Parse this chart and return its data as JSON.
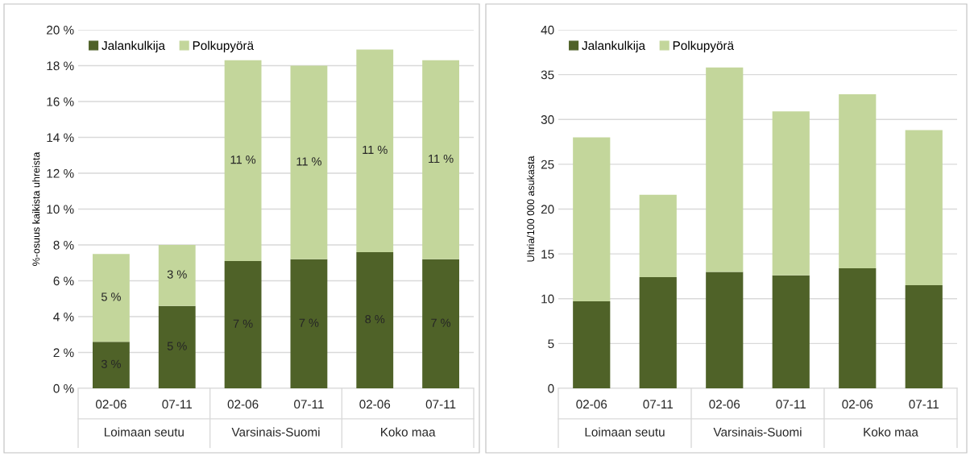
{
  "chart_data": [
    {
      "type": "bar",
      "stacked": true,
      "ylabel": "%-osuus kaikista uhreista",
      "categories": [
        "02-06",
        "07-11",
        "02-06",
        "07-11",
        "02-06",
        "07-11"
      ],
      "annotations": [
        "Loimaan seutu",
        "Varsinais-Suomi",
        "Koko maa"
      ],
      "series": [
        {
          "name": "Jalankulkija",
          "color": "#4f6228",
          "values": [
            2.6,
            4.6,
            7.1,
            7.2,
            7.6,
            7.2
          ],
          "value_labels": [
            "3 %",
            "5 %",
            "7 %",
            "7 %",
            "8 %",
            "7 %"
          ]
        },
        {
          "name": "Polkupyörä",
          "color": "#c3d69b",
          "values": [
            4.9,
            3.4,
            11.2,
            10.8,
            11.3,
            11.1
          ],
          "value_labels": [
            "5 %",
            "3 %",
            "11 %",
            "11 %",
            "11 %",
            "11 %"
          ]
        }
      ],
      "ylim": [
        0,
        20
      ],
      "yticks": [
        {
          "value": 0,
          "label": "0 %"
        },
        {
          "value": 2,
          "label": "2 %"
        },
        {
          "value": 4,
          "label": "4 %"
        },
        {
          "value": 6,
          "label": "6 %"
        },
        {
          "value": 8,
          "label": "8 %"
        },
        {
          "value": 10,
          "label": "10 %"
        },
        {
          "value": 12,
          "label": "12 %"
        },
        {
          "value": 14,
          "label": "14 %"
        },
        {
          "value": 16,
          "label": "16 %"
        },
        {
          "value": 18,
          "label": "18 %"
        },
        {
          "value": 20,
          "label": "20 %"
        }
      ],
      "grid": "y",
      "legend": "top left"
    },
    {
      "type": "bar",
      "stacked": true,
      "ylabel": "Uhria/100 000 asukasta",
      "categories": [
        "02-06",
        "07-11",
        "02-06",
        "07-11",
        "02-06",
        "07-11"
      ],
      "annotations": [
        "Loimaan seutu",
        "Varsinais-Suomi",
        "Koko maa"
      ],
      "series": [
        {
          "name": "Jalankulkija",
          "color": "#4f6228",
          "values": [
            9.7,
            12.4,
            13.0,
            12.6,
            13.4,
            11.5
          ]
        },
        {
          "name": "Polkupyörä",
          "color": "#c3d69b",
          "values": [
            18.3,
            9.2,
            22.8,
            18.3,
            19.4,
            17.3
          ]
        }
      ],
      "ylim": [
        0,
        40
      ],
      "yticks": [
        0,
        5,
        10,
        15,
        20,
        25,
        30,
        35,
        40
      ],
      "grid": "y",
      "legend": "top left"
    }
  ]
}
